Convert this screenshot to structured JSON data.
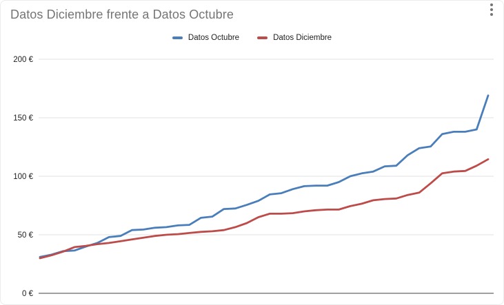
{
  "card": {
    "title": "Datos Diciembre frente a Datos Octubre"
  },
  "menu": {
    "icon": "kebab-menu-icon"
  },
  "legend": [
    {
      "label": "Datos Octubre",
      "color": "#4a7eba"
    },
    {
      "label": "Datos Diciembre",
      "color": "#bd4b49"
    }
  ],
  "colors": {
    "gridline": "#e0e0e0",
    "axis_line": "#424242",
    "tick_text": "#212121",
    "title_text": "#757575"
  },
  "chart_data": {
    "type": "line",
    "title": "Datos Diciembre frente a Datos Octubre",
    "xlabel": "",
    "ylabel": "",
    "ylim": [
      0,
      200
    ],
    "grid": true,
    "legend_position": "top",
    "yticks": [
      {
        "value": 0,
        "label": "0 €"
      },
      {
        "value": 50,
        "label": "50 €"
      },
      {
        "value": 100,
        "label": "100 €"
      },
      {
        "value": 150,
        "label": "150 €"
      },
      {
        "value": 200,
        "label": "200 €"
      }
    ],
    "x": [
      1,
      2,
      3,
      4,
      5,
      6,
      7,
      8,
      9,
      10,
      11,
      12,
      13,
      14,
      15,
      16,
      17,
      18,
      19,
      20,
      21,
      22,
      23,
      24,
      25,
      26,
      27,
      28,
      29,
      30,
      31,
      32,
      33,
      34,
      35,
      36,
      37,
      38,
      39,
      40
    ],
    "series": [
      {
        "name": "Datos Octubre",
        "color": "#4a7eba",
        "values": [
          31,
          33,
          36,
          36.5,
          40,
          43,
          48,
          49,
          54,
          54.5,
          56,
          56.5,
          58,
          58.5,
          64.5,
          65.5,
          72,
          72.5,
          75.5,
          79,
          84.5,
          85.5,
          89,
          91.5,
          92,
          92,
          95,
          100,
          102.5,
          104,
          108.5,
          109,
          118,
          124,
          125.5,
          136,
          138,
          138,
          140,
          169
        ]
      },
      {
        "name": "Datos Diciembre",
        "color": "#bd4b49",
        "values": [
          30,
          32.5,
          35.5,
          39.5,
          40.5,
          42,
          43,
          44.5,
          46,
          47.5,
          49,
          50,
          50.5,
          51.5,
          52.5,
          53,
          54,
          56.5,
          60,
          65,
          68,
          68,
          68.5,
          70,
          71,
          71.5,
          71.5,
          74.5,
          76.5,
          79.5,
          80.5,
          81,
          84,
          86,
          94,
          102.5,
          104,
          104.5,
          109,
          114.5
        ]
      }
    ]
  }
}
